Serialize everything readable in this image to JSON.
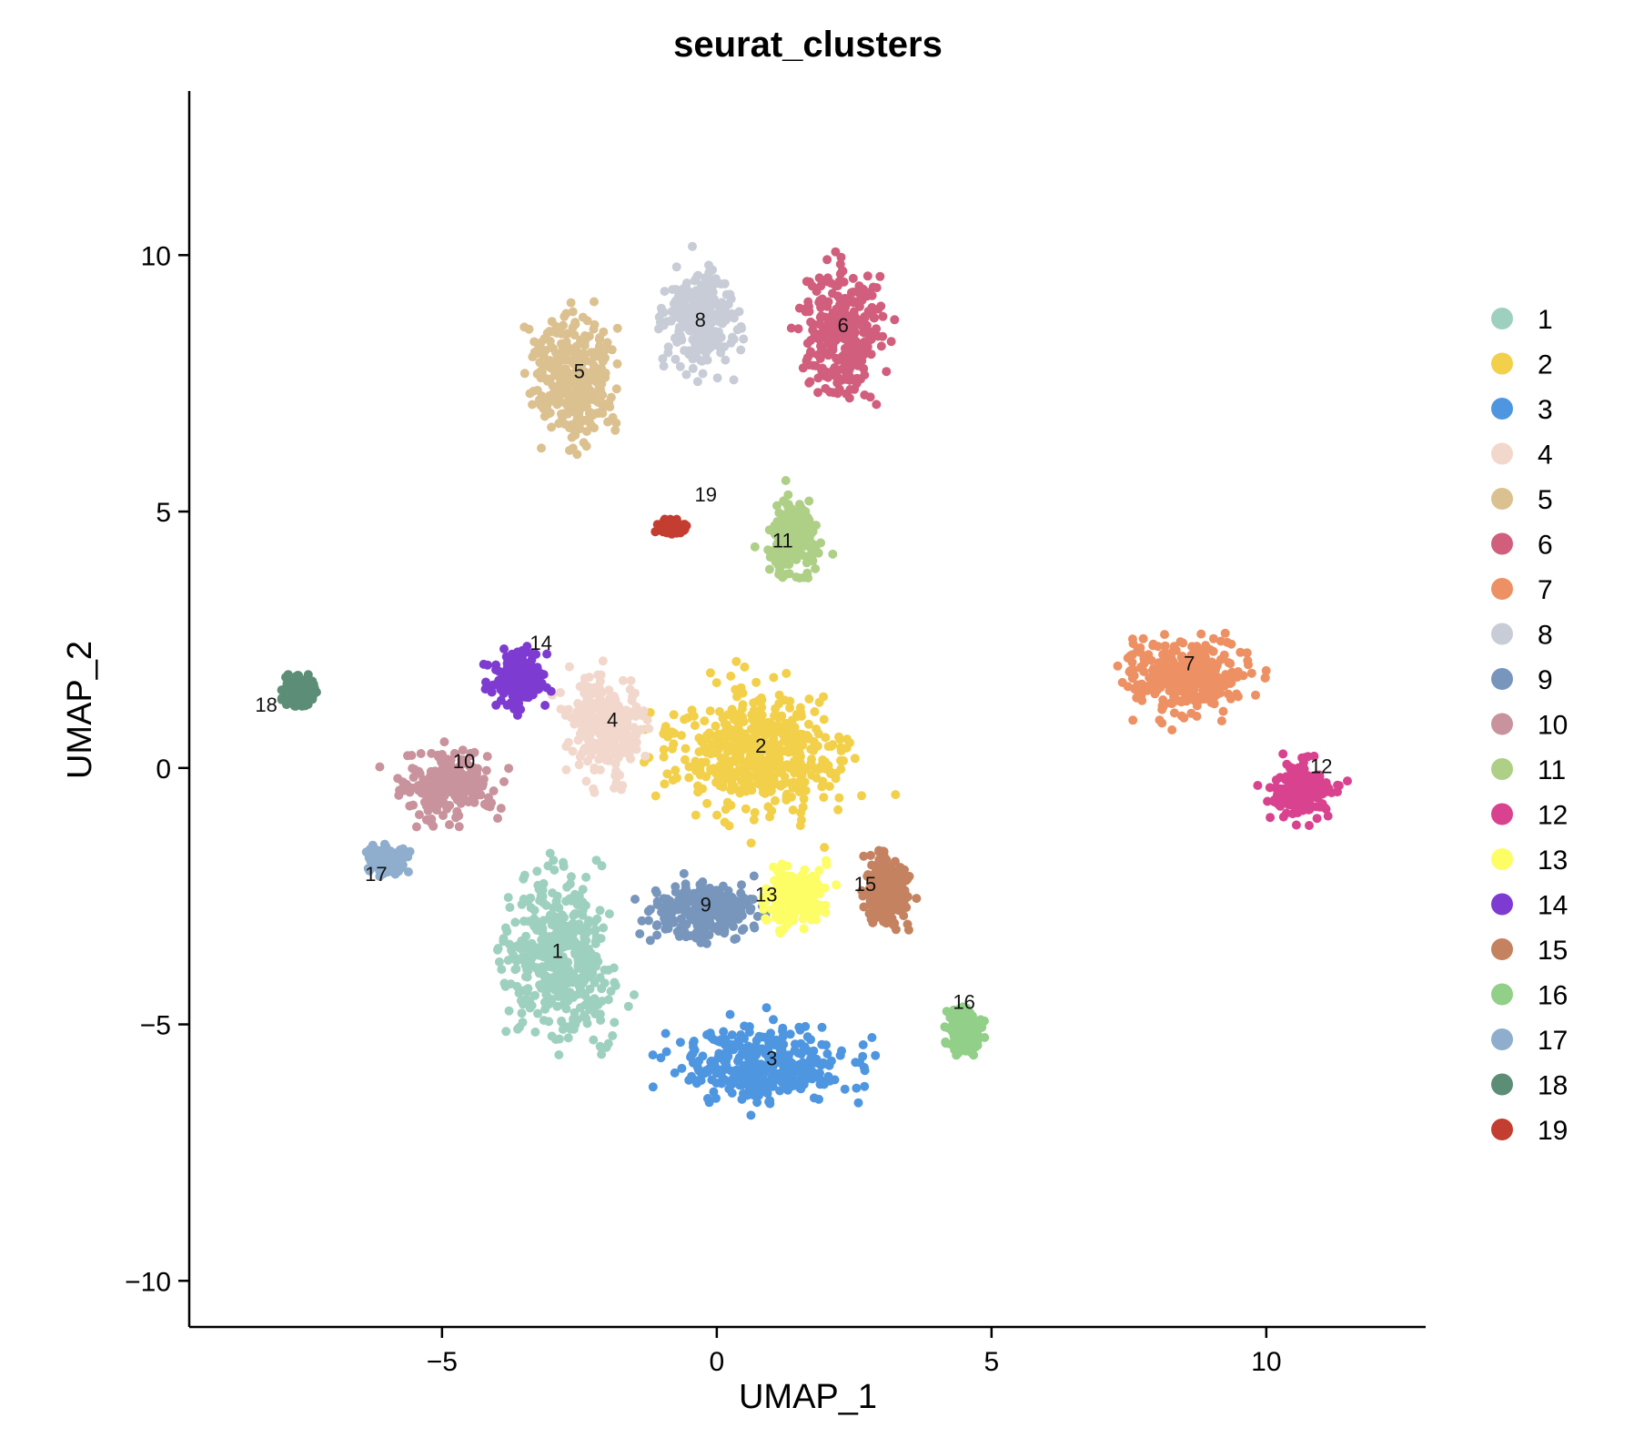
{
  "chart_data": {
    "type": "scatter",
    "title": "seurat_clusters",
    "xlabel": "UMAP_1",
    "ylabel": "UMAP_2",
    "xlim": [
      -9.6,
      12.9
    ],
    "ylim": [
      -10.9,
      13.2
    ],
    "xticks": [
      -5,
      0,
      5,
      10
    ],
    "xtick_labels": [
      "−5",
      "0",
      "5",
      "10"
    ],
    "yticks": [
      -10,
      -5,
      0,
      5,
      10
    ],
    "ytick_labels": [
      "−10",
      "−5",
      "0",
      "5",
      "10"
    ],
    "grid": false,
    "legend_position": "right",
    "clusters": [
      {
        "name": "1",
        "color": "#9ed0c0",
        "center": [
          -2.9,
          -3.7
        ],
        "spread": [
          1.3,
          1.9
        ]
      },
      {
        "name": "2",
        "color": "#f2d04a",
        "center": [
          0.8,
          0.3
        ],
        "spread": [
          2.0,
          1.5
        ]
      },
      {
        "name": "3",
        "color": "#4f96e0",
        "center": [
          0.9,
          -5.8
        ],
        "spread": [
          2.0,
          0.9
        ]
      },
      {
        "name": "4",
        "color": "#f2d8cc",
        "center": [
          -2.0,
          0.8
        ],
        "spread": [
          0.9,
          1.2
        ]
      },
      {
        "name": "5",
        "color": "#dcc190",
        "center": [
          -2.6,
          7.6
        ],
        "spread": [
          0.9,
          1.6
        ]
      },
      {
        "name": "6",
        "color": "#d05e7c",
        "center": [
          2.3,
          8.5
        ],
        "spread": [
          0.9,
          1.5
        ]
      },
      {
        "name": "7",
        "color": "#ed9063",
        "center": [
          8.6,
          1.8
        ],
        "spread": [
          1.4,
          1.0
        ]
      },
      {
        "name": "8",
        "color": "#c8ccd6",
        "center": [
          -0.3,
          8.8
        ],
        "spread": [
          0.8,
          1.3
        ]
      },
      {
        "name": "9",
        "color": "#7896bc",
        "center": [
          -0.2,
          -2.8
        ],
        "spread": [
          1.2,
          0.7
        ]
      },
      {
        "name": "10",
        "color": "#c9939d",
        "center": [
          -4.9,
          -0.3
        ],
        "spread": [
          1.0,
          0.8
        ]
      },
      {
        "name": "11",
        "color": "#aecf86",
        "center": [
          1.4,
          4.5
        ],
        "spread": [
          0.6,
          0.9
        ]
      },
      {
        "name": "12",
        "color": "#d9428e",
        "center": [
          10.6,
          -0.4
        ],
        "spread": [
          0.7,
          0.7
        ]
      },
      {
        "name": "13",
        "color": "#fdfd66",
        "center": [
          1.4,
          -2.5
        ],
        "spread": [
          0.7,
          0.7
        ]
      },
      {
        "name": "14",
        "color": "#7e3bd1",
        "center": [
          -3.6,
          1.8
        ],
        "spread": [
          0.6,
          0.7
        ]
      },
      {
        "name": "15",
        "color": "#c48260",
        "center": [
          3.1,
          -2.4
        ],
        "spread": [
          0.5,
          0.9
        ]
      },
      {
        "name": "16",
        "color": "#92cf88",
        "center": [
          4.5,
          -5.1
        ],
        "spread": [
          0.4,
          0.5
        ]
      },
      {
        "name": "17",
        "color": "#8fadcd",
        "center": [
          -6.0,
          -1.8
        ],
        "spread": [
          0.4,
          0.3
        ]
      },
      {
        "name": "18",
        "color": "#5c8d76",
        "center": [
          -7.6,
          1.5
        ],
        "spread": [
          0.4,
          0.4
        ]
      },
      {
        "name": "19",
        "color": "#c43d31",
        "center": [
          -0.8,
          4.7
        ],
        "spread": [
          0.3,
          0.15
        ]
      }
    ],
    "label_positions": [
      {
        "name": "1",
        "x": -2.9,
        "y": -3.7
      },
      {
        "name": "2",
        "x": 0.8,
        "y": 0.3
      },
      {
        "name": "3",
        "x": 1.0,
        "y": -5.8
      },
      {
        "name": "4",
        "x": -1.9,
        "y": 0.8
      },
      {
        "name": "5",
        "x": -2.5,
        "y": 7.6
      },
      {
        "name": "6",
        "x": 2.3,
        "y": 8.5
      },
      {
        "name": "7",
        "x": 8.6,
        "y": 1.9
      },
      {
        "name": "8",
        "x": -0.3,
        "y": 8.6
      },
      {
        "name": "9",
        "x": -0.2,
        "y": -2.8
      },
      {
        "name": "10",
        "x": -4.6,
        "y": 0.0
      },
      {
        "name": "11",
        "x": 1.2,
        "y": 4.3
      },
      {
        "name": "12",
        "x": 11.0,
        "y": -0.1
      },
      {
        "name": "13",
        "x": 0.9,
        "y": -2.6
      },
      {
        "name": "14",
        "x": -3.2,
        "y": 2.3
      },
      {
        "name": "15",
        "x": 2.7,
        "y": -2.4
      },
      {
        "name": "16",
        "x": 4.5,
        "y": -4.7
      },
      {
        "name": "17",
        "x": -6.2,
        "y": -2.2
      },
      {
        "name": "18",
        "x": -8.2,
        "y": 1.1
      },
      {
        "name": "19",
        "x": -0.2,
        "y": 5.2
      }
    ]
  }
}
